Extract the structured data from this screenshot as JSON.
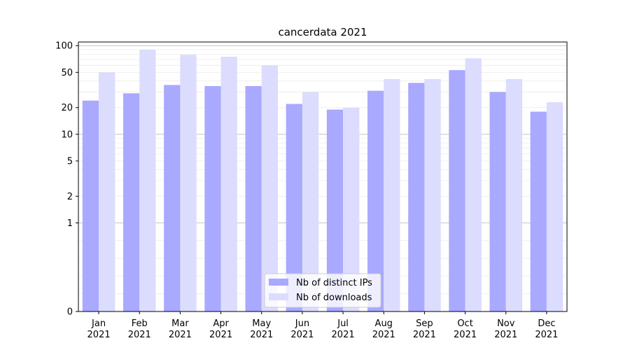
{
  "chart_data": {
    "type": "bar",
    "title": "cancerdata 2021",
    "xlabel": "",
    "ylabel": "",
    "y_scale": "symlog",
    "ylim": [
      0,
      110
    ],
    "y_ticks": [
      0,
      1,
      2,
      5,
      10,
      20,
      50,
      100
    ],
    "grid": "horizontal",
    "categories": [
      "Jan\n2021",
      "Feb\n2021",
      "Mar\n2021",
      "Apr\n2021",
      "May\n2021",
      "Jun\n2021",
      "Jul\n2021",
      "Aug\n2021",
      "Sep\n2021",
      "Oct\n2021",
      "Nov\n2021",
      "Dec\n2021"
    ],
    "series": [
      {
        "name": "Nb of distinct IPs",
        "color": "#a9a9ff",
        "values": [
          24,
          29,
          36,
          35,
          35,
          22,
          19,
          31,
          38,
          53,
          30,
          18
        ]
      },
      {
        "name": "Nb of downloads",
        "color": "#dcdcff",
        "values": [
          50,
          90,
          79,
          75,
          60,
          30,
          20,
          42,
          42,
          72,
          42,
          23
        ]
      }
    ],
    "legend_position": "lower center"
  }
}
